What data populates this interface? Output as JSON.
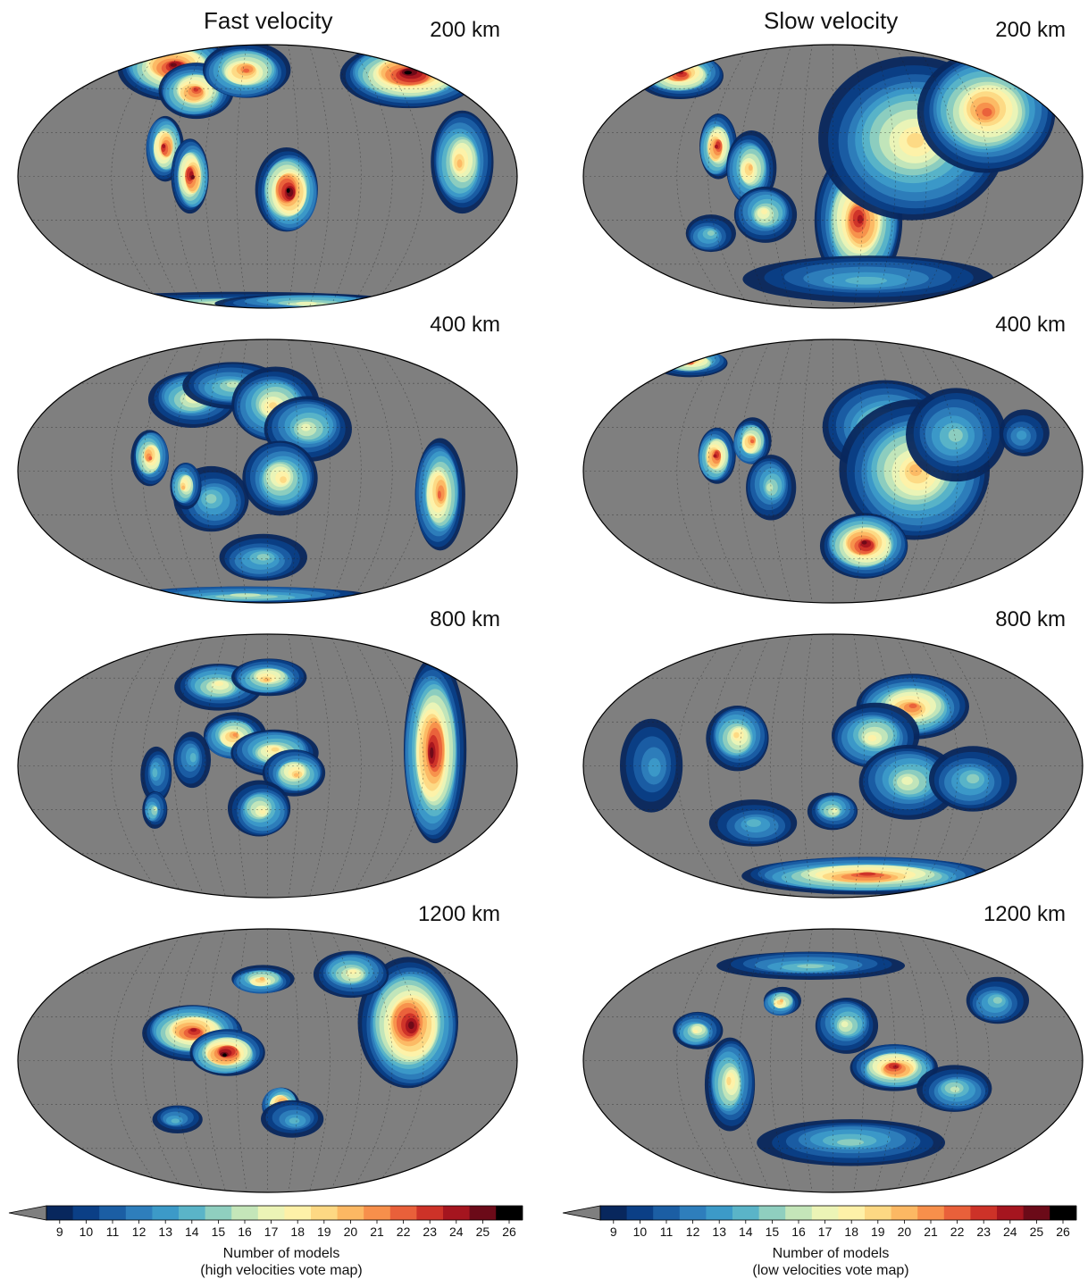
{
  "figure": {
    "colormap": [
      "#08275d",
      "#0b3f86",
      "#1b5ea4",
      "#2e7ebc",
      "#3c9ac8",
      "#5ab4c8",
      "#8fcfbf",
      "#c4e6b9",
      "#ecf4b6",
      "#fef1a8",
      "#fdd883",
      "#fcb863",
      "#f78f4b",
      "#e9603a",
      "#cd3228",
      "#a5151f",
      "#6b0a18",
      "#000000"
    ],
    "ocean_color": "#7f7f7f",
    "panels": [
      {
        "title": "Fast velocity",
        "colorbar": {
          "ticks": [
            "9",
            "10",
            "11",
            "12",
            "13",
            "14",
            "15",
            "16",
            "17",
            "18",
            "19",
            "20",
            "21",
            "22",
            "23",
            "24",
            "25",
            "26"
          ],
          "label": "Number of models",
          "sublabel": "(high velocities vote map)"
        },
        "maps": [
          {
            "depth": "200 km",
            "blobs": [
              [
                -85,
                75,
                18,
                14,
                25
              ],
              [
                -60,
                58,
                12,
                12,
                23
              ],
              [
                -20,
                72,
                14,
                12,
                22
              ],
              [
                -75,
                20,
                6,
                14,
                24
              ],
              [
                -55,
                0,
                6,
                16,
                25
              ],
              [
                15,
                -10,
                10,
                18,
                26
              ],
              [
                125,
                70,
                22,
                14,
                26
              ],
              [
                140,
                10,
                10,
                22,
                20
              ],
              [
                -30,
                -88,
                55,
                5,
                18
              ],
              [
                40,
                -86,
                30,
                4,
                17
              ]
            ]
          },
          {
            "depth": "400 km",
            "blobs": [
              [
                -60,
                50,
                14,
                12,
                18
              ],
              [
                -30,
                58,
                16,
                10,
                16
              ],
              [
                5,
                45,
                14,
                16,
                19
              ],
              [
                30,
                30,
                14,
                14,
                17
              ],
              [
                10,
                -5,
                12,
                16,
                19
              ],
              [
                -40,
                -20,
                12,
                14,
                15
              ],
              [
                -85,
                10,
                6,
                12,
                22
              ],
              [
                -60,
                -10,
                5,
                10,
                20
              ],
              [
                -5,
                -60,
                14,
                10,
                15
              ],
              [
                125,
                -15,
                8,
                24,
                22
              ],
              [
                -20,
                -85,
                40,
                4,
                16
              ]
            ]
          },
          {
            "depth": "800 km",
            "blobs": [
              [
                -40,
                55,
                14,
                10,
                18
              ],
              [
                0,
                60,
                12,
                8,
                20
              ],
              [
                -25,
                20,
                10,
                10,
                21
              ],
              [
                5,
                10,
                14,
                10,
                19
              ],
              [
                20,
                -5,
                10,
                10,
                20
              ],
              [
                -5,
                -30,
                10,
                12,
                18
              ],
              [
                -80,
                -5,
                5,
                12,
                14
              ],
              [
                -85,
                -30,
                4,
                8,
                16
              ],
              [
                120,
                10,
                10,
                40,
                25
              ],
              [
                -55,
                5,
                6,
                12,
                14
              ]
            ]
          },
          {
            "depth": "1200 km",
            "blobs": [
              [
                -55,
                20,
                16,
                12,
                24
              ],
              [
                -30,
                5,
                12,
                10,
                26
              ],
              [
                -5,
                55,
                10,
                6,
                20
              ],
              [
                10,
                -30,
                6,
                8,
                24
              ],
              [
                20,
                -40,
                10,
                8,
                14
              ],
              [
                105,
                25,
                16,
                28,
                25
              ],
              [
                70,
                60,
                12,
                10,
                18
              ],
              [
                -70,
                -40,
                8,
                6,
                14
              ]
            ]
          }
        ]
      },
      {
        "title": "Slow velocity",
        "colorbar": {
          "ticks": [
            "9",
            "10",
            "11",
            "12",
            "13",
            "14",
            "15",
            "16",
            "17",
            "18",
            "19",
            "20",
            "21",
            "22",
            "23",
            "24",
            "25",
            "26"
          ],
          "label": "Number of models",
          "sublabel": "(low velocities vote map)"
        },
        "maps": [
          {
            "depth": "200 km",
            "blobs": [
              [
                -135,
                70,
                14,
                10,
                24
              ],
              [
                -85,
                20,
                6,
                14,
                24
              ],
              [
                -60,
                5,
                8,
                16,
                20
              ],
              [
                -50,
                -25,
                10,
                12,
                18
              ],
              [
                20,
                -30,
                14,
                30,
                24
              ],
              [
                60,
                25,
                30,
                35,
                19
              ],
              [
                120,
                45,
                22,
                26,
                22
              ],
              [
                30,
                -70,
                40,
                10,
                14
              ],
              [
                -95,
                -40,
                8,
                8,
                15
              ]
            ]
          },
          {
            "depth": "400 km",
            "blobs": [
              [
                -130,
                75,
                12,
                6,
                22
              ],
              [
                -85,
                10,
                6,
                12,
                24
              ],
              [
                -60,
                20,
                6,
                10,
                22
              ],
              [
                -45,
                -10,
                8,
                14,
                16
              ],
              [
                40,
                30,
                20,
                20,
                18
              ],
              [
                60,
                0,
                24,
                30,
                20
              ],
              [
                25,
                -50,
                14,
                14,
                25
              ],
              [
                90,
                25,
                16,
                20,
                15
              ],
              [
                140,
                25,
                8,
                10,
                13
              ]
            ]
          },
          {
            "depth": "800 km",
            "blobs": [
              [
                -70,
                20,
                10,
                14,
                19
              ],
              [
                60,
                40,
                18,
                14,
                22
              ],
              [
                30,
                20,
                14,
                14,
                18
              ],
              [
                55,
                -10,
                16,
                16,
                17
              ],
              [
                -130,
                0,
                10,
                20,
                13
              ],
              [
                -60,
                -40,
                14,
                10,
                14
              ],
              [
                0,
                -30,
                8,
                8,
                17
              ],
              [
                30,
                -75,
                40,
                8,
                23
              ],
              [
                100,
                -10,
                14,
                14,
                15
              ]
            ]
          },
          {
            "depth": "1200 km",
            "blobs": [
              [
                -75,
                -15,
                8,
                20,
                19
              ],
              [
                -100,
                20,
                8,
                8,
                18
              ],
              [
                -40,
                40,
                6,
                6,
                20
              ],
              [
                10,
                25,
                10,
                12,
                17
              ],
              [
                45,
                -5,
                14,
                10,
                24
              ],
              [
                90,
                -20,
                12,
                10,
                16
              ],
              [
                15,
                -55,
                30,
                10,
                15
              ],
              [
                -20,
                65,
                30,
                6,
                15
              ],
              [
                125,
                40,
                10,
                10,
                15
              ]
            ]
          }
        ]
      }
    ]
  }
}
